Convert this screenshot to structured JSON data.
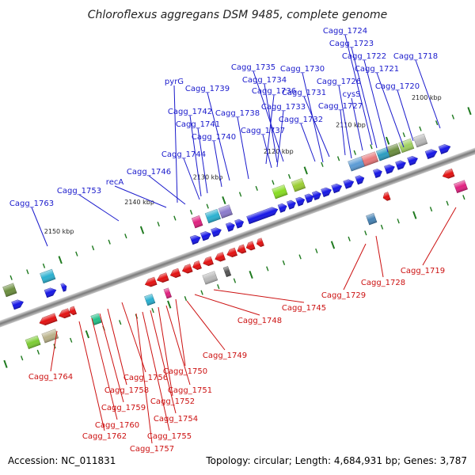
{
  "title": "Chloroflexus aggregans DSM 9485, complete genome",
  "footer": {
    "accession": "Accession: NC_011831",
    "summary": "Topology: circular; Length: 4,684,931 bp; Genes: 3,787"
  },
  "colors": {
    "forward": "#1515e6",
    "reverse": "#e31010",
    "label_forward": "#1a1acc",
    "label_reverse": "#cc1111",
    "tick": "#1f7a1f"
  },
  "scale_labels": [
    "2100 kbp",
    "2110 kbp",
    "2120 kbp",
    "2130 kbp",
    "2140 kbp",
    "2150 kbp"
  ],
  "forward_labels": [
    "Cagg_1724",
    "Cagg_1723",
    "Cagg_1722",
    "Cagg_1718",
    "Cagg_1735",
    "Cagg_1730",
    "Cagg_1721",
    "Cagg_1734",
    "pyrG",
    "Cagg_1726",
    "Cagg_1720",
    "Cagg_1739",
    "Cagg_1736",
    "Cagg_1731",
    "cysS",
    "Cagg_1733",
    "Cagg_1727",
    "Cagg_1742",
    "Cagg_1738",
    "Cagg_1732",
    "Cagg_1741",
    "Cagg_1737",
    "Cagg_1740",
    "Cagg_1744",
    "Cagg_1746",
    "recA",
    "Cagg_1753",
    "Cagg_1763"
  ],
  "reverse_labels": [
    "Cagg_1719",
    "Cagg_1728",
    "Cagg_1729",
    "Cagg_1745",
    "Cagg_1748",
    "Cagg_1749",
    "Cagg_1764",
    "Cagg_1750",
    "Cagg_1756",
    "Cagg_1751",
    "Cagg_1758",
    "Cagg_1752",
    "Cagg_1759",
    "Cagg_1754",
    "Cagg_1760",
    "Cagg_1755",
    "Cagg_1762",
    "Cagg_1757"
  ]
}
